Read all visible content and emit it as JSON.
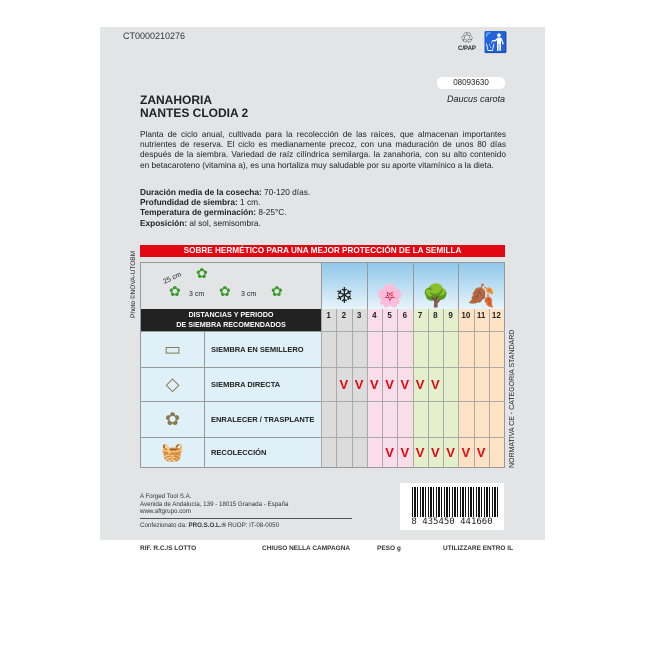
{
  "packet": {
    "code": "CT0000210276",
    "recycling": {
      "number": "81",
      "material": "C/PAP"
    },
    "reference": "08093630",
    "latin_name": "Daucus carota",
    "title_line1": "ZANAHORIA",
    "title_line2": "NANTES CLODIA 2",
    "description": "Planta de ciclo anual, cultivada para la recolección de las raíces, que almacenan importantes nutrientes de reserva. El ciclo es medianamente precoz, con una maduración de unos 80 días después de la siembra. Variedad de raíz cilíndrica semilarga. la zanahoria, con su alto contenido en betacaroteno (vitamina a), es una hortaliza muy saludable por su aporte vitamínico a la dieta.",
    "facts": [
      {
        "label": "Duración media de la cosecha:",
        "value": " 70-120 días."
      },
      {
        "label": "Profundidad de siembra:",
        "value": " 1 cm."
      },
      {
        "label": "Temperatura de germinación:",
        "value": " 8-25°C."
      },
      {
        "label": "Exposición:",
        "value": " al sol, semisombra."
      }
    ],
    "banner": "SOBRE HERMÉTICO PARA UNA MEJOR PROTECCIÓN DE LA SEMILLA",
    "photo_credit": "Photo ©NOVA-UTOBM",
    "side_note": "NORMATIVA CE - CATEGORIA STANDARD"
  },
  "table": {
    "spacing": {
      "row": "25 cm",
      "plant1": "3 cm",
      "plant2": "3 cm"
    },
    "header_line1": "DISTANCIAS Y PERIODO",
    "header_line2": "DE SIEMBRA RECOMENDADOS",
    "months": [
      "1",
      "2",
      "3",
      "4",
      "5",
      "6",
      "7",
      "8",
      "9",
      "10",
      "11",
      "12"
    ],
    "season_colors": [
      "#dcdcdc",
      "#f9dde8",
      "#e4efcc",
      "#fde3c4"
    ],
    "rows": [
      {
        "label": "SIEMBRA EN SEMILLERO",
        "months": []
      },
      {
        "label": "SIEMBRA DIRECTA",
        "months": [
          2,
          3,
          4,
          5,
          6,
          7,
          8
        ]
      },
      {
        "label": "ENRALECER / TRASPLANTE",
        "months": []
      },
      {
        "label": "RECOLECCIÓN",
        "months": [
          5,
          6,
          7,
          8,
          9,
          10,
          11
        ]
      }
    ],
    "check_mark": "V",
    "check_color": "#e30613"
  },
  "company": {
    "name": "A Forged Tool S.A.",
    "address": "Avenida de Andalucía, 139 - 18015 Granada - España",
    "web": "www.aftgrupo.com",
    "packed_label": "Confezionato da: ",
    "packer": "PRO.S.O.L.®",
    "ruop": " RUOP: IT-08-0050"
  },
  "barcode": "8 435450 441660",
  "footer": {
    "lot": "RIF. R.C./S LOTTO",
    "closed": "CHIUSO NELLA CAMPAGNA",
    "weight": "PESO g",
    "use_by": "UTILIZZARE ENTRO IL"
  }
}
